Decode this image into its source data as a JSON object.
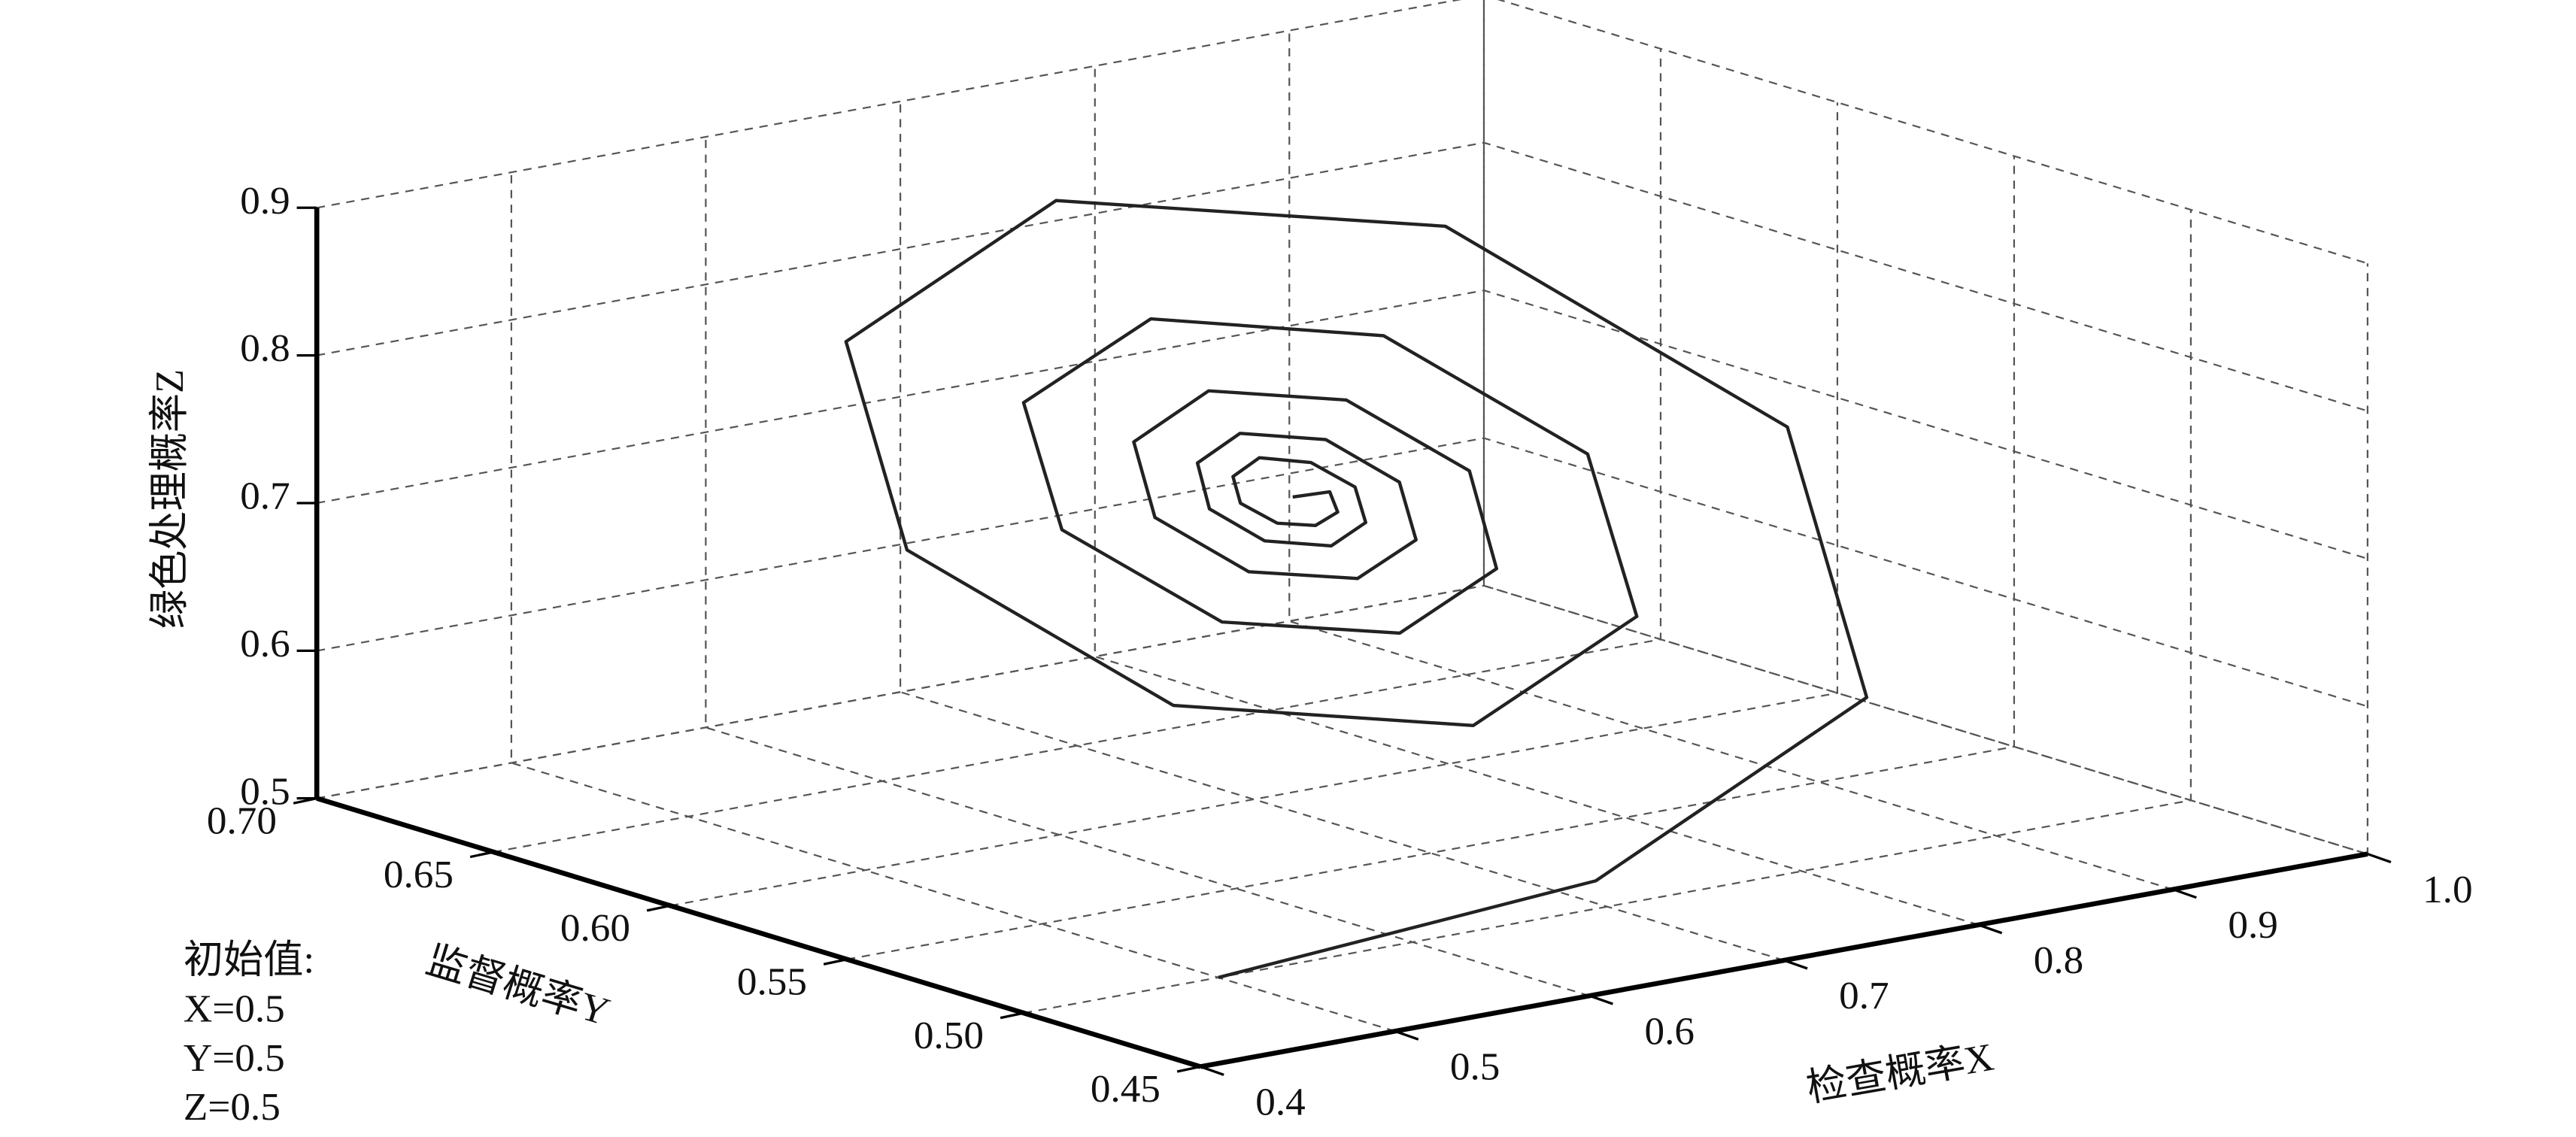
{
  "chart_data": {
    "type": "line3d",
    "xlabel": "检查概率X",
    "ylabel": "监督概率Y",
    "zlabel": "绿色处理概率Z",
    "annotations": [
      "初始值:",
      "X=0.5",
      "Y=0.5",
      "Z=0.5"
    ],
    "xlim": [
      0.4,
      1.0
    ],
    "ylim": [
      0.45,
      0.7
    ],
    "zlim": [
      0.5,
      0.9
    ],
    "xticks": [
      0.4,
      0.5,
      0.6,
      0.7,
      0.8,
      0.9,
      {
        "value": 1.0,
        "label": "1.0"
      }
    ],
    "yticks": [
      0.45,
      {
        "value": 0.5,
        "label": "0.50"
      },
      0.55,
      {
        "value": 0.6,
        "label": "0.60"
      },
      0.65,
      {
        "value": 0.7,
        "label": "0.70"
      }
    ],
    "zticks": [
      0.5,
      0.6,
      0.7,
      0.8,
      0.9
    ],
    "grid": true,
    "series": [
      {
        "color": "#222222",
        "x": [
          0.5,
          0.705,
          0.897,
          0.967,
          0.893,
          0.731,
          0.583,
          0.529,
          0.586,
          0.711,
          0.826,
          0.868,
          0.823,
          0.727,
          0.638,
          0.605,
          0.64,
          0.715,
          0.783,
          0.809,
          0.782,
          0.724,
          0.671,
          0.651,
          0.672,
          0.717,
          0.758,
          0.773,
          0.757,
          0.722,
          0.691,
          0.679,
          0.691,
          0.718,
          0.743,
          0.752,
          0.742,
          0.721,
          0.702,
          0.695,
          0.703,
          0.719,
          0.734,
          0.739,
          0.72
        ],
        "y": [
          0.5,
          0.506,
          0.535,
          0.596,
          0.652,
          0.673,
          0.651,
          0.604,
          0.56,
          0.544,
          0.561,
          0.598,
          0.631,
          0.644,
          0.631,
          0.602,
          0.576,
          0.567,
          0.577,
          0.599,
          0.619,
          0.626,
          0.618,
          0.601,
          0.586,
          0.58,
          0.586,
          0.599,
          0.611,
          0.616,
          0.611,
          0.601,
          0.592,
          0.588,
          0.592,
          0.6,
          0.607,
          0.61,
          0.607,
          0.601,
          0.595,
          0.593,
          0.595,
          0.6,
          0.6
        ],
        "z": [
          0.5,
          0.512,
          0.569,
          0.691,
          0.804,
          0.845,
          0.801,
          0.707,
          0.62,
          0.588,
          0.622,
          0.695,
          0.762,
          0.787,
          0.761,
          0.704,
          0.652,
          0.633,
          0.653,
          0.697,
          0.737,
          0.752,
          0.736,
          0.702,
          0.671,
          0.66,
          0.672,
          0.698,
          0.722,
          0.731,
          0.722,
          0.701,
          0.683,
          0.676,
          0.683,
          0.699,
          0.713,
          0.719,
          0.713,
          0.701,
          0.69,
          0.686,
          0.69,
          0.699,
          0.7
        ]
      }
    ]
  }
}
